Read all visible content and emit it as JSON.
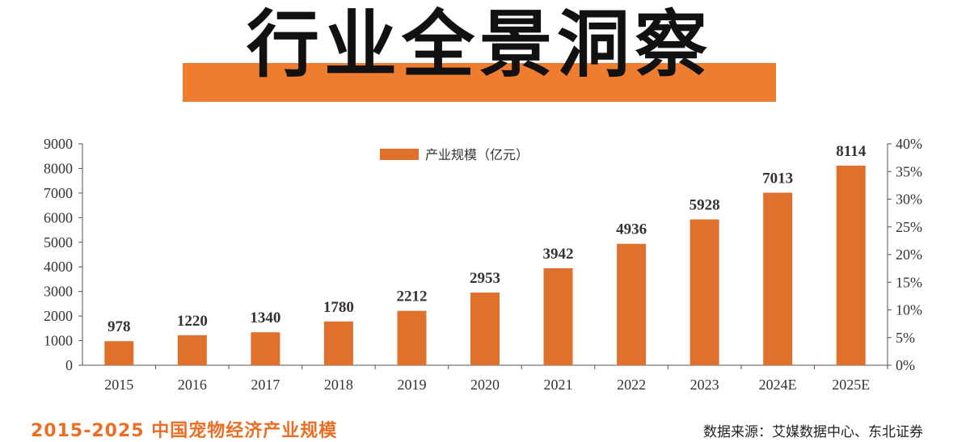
{
  "header": {
    "title": "行业全景洞察"
  },
  "footer": {
    "caption": "2015-2025 中国宠物经济产业规模",
    "source": "数据来源：艾媒数据中心、东北证券"
  },
  "colors": {
    "accent": "#ee7d30",
    "bar": "#e0712c",
    "axis": "#555555"
  },
  "chart_data": {
    "type": "bar",
    "categories": [
      "2015",
      "2016",
      "2017",
      "2018",
      "2019",
      "2020",
      "2021",
      "2022",
      "2023",
      "2024E",
      "2025E"
    ],
    "series": [
      {
        "name": "产业规模（亿元）",
        "values": [
          978,
          1220,
          1340,
          1780,
          2212,
          2953,
          3942,
          4936,
          5928,
          7013,
          8114
        ]
      }
    ],
    "ylim": [
      0,
      9000
    ],
    "yticks": [
      "0",
      "1000",
      "2000",
      "3000",
      "4000",
      "5000",
      "6000",
      "7000",
      "8000",
      "9000"
    ],
    "y2lim": [
      0,
      40
    ],
    "y2ticks": [
      "0%",
      "5%",
      "10%",
      "15%",
      "20%",
      "25%",
      "30%",
      "35%",
      "40%"
    ],
    "legend": "top-center",
    "grid": false
  }
}
